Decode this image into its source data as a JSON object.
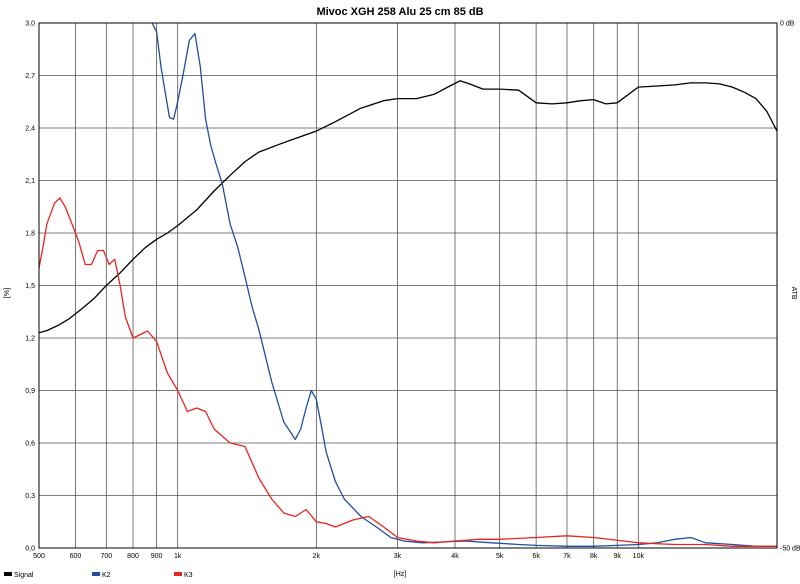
{
  "chart_data": {
    "type": "line",
    "title": "Mivoc XGH 258 Alu 25 cm 85 dB",
    "xlabel": "[Hz]",
    "ylabel": "[%]",
    "y2label": "ATB",
    "x_scale": "log",
    "xlim": [
      500,
      20000
    ],
    "ylim": [
      0,
      3.0
    ],
    "y2lim": [
      -50,
      0
    ],
    "grid": true,
    "legend_position": "bottom-left",
    "x_ticks": [
      {
        "value": 500,
        "label": "500"
      },
      {
        "value": 600,
        "label": "600"
      },
      {
        "value": 700,
        "label": "700"
      },
      {
        "value": 800,
        "label": "800"
      },
      {
        "value": 900,
        "label": "900"
      },
      {
        "value": 1000,
        "label": "1k"
      },
      {
        "value": 2000,
        "label": "2k"
      },
      {
        "value": 3000,
        "label": "3k"
      },
      {
        "value": 4000,
        "label": "4k"
      },
      {
        "value": 5000,
        "label": "5k"
      },
      {
        "value": 6000,
        "label": "6k"
      },
      {
        "value": 7000,
        "label": "7k"
      },
      {
        "value": 8000,
        "label": "8k"
      },
      {
        "value": 9000,
        "label": "9k"
      },
      {
        "value": 10000,
        "label": "10k"
      }
    ],
    "y_ticks": [
      {
        "value": 0,
        "label": "0,0"
      },
      {
        "value": 0.3,
        "label": "0,3"
      },
      {
        "value": 0.6,
        "label": "0,6"
      },
      {
        "value": 0.9,
        "label": "0,9"
      },
      {
        "value": 1.2,
        "label": "1,2"
      },
      {
        "value": 1.5,
        "label": "1,5"
      },
      {
        "value": 1.8,
        "label": "1,8"
      },
      {
        "value": 2.1,
        "label": "2,1"
      },
      {
        "value": 2.4,
        "label": "2,4"
      },
      {
        "value": 2.7,
        "label": "2,7"
      },
      {
        "value": 3.0,
        "label": "3,0"
      }
    ],
    "y2_ticks": [
      {
        "value": 0,
        "label": "0 dB"
      },
      {
        "value": -50,
        "label": "-50 dB"
      }
    ],
    "series": [
      {
        "name": "Signal",
        "color": "#000000",
        "axis": "right_dB",
        "x": [
          500,
          520,
          550,
          580,
          620,
          660,
          700,
          750,
          800,
          850,
          900,
          950,
          1000,
          1100,
          1200,
          1300,
          1400,
          1500,
          1650,
          1800,
          2000,
          2200,
          2500,
          2800,
          3000,
          3300,
          3600,
          3900,
          4100,
          4300,
          4600,
          5000,
          5500,
          6000,
          6500,
          7000,
          7500,
          8000,
          8500,
          9000,
          10000,
          11000,
          12000,
          13000,
          14000,
          15000,
          16000,
          17000,
          18000,
          19000,
          20000
        ],
        "values": [
          -29.5,
          -29.3,
          -28.8,
          -28.2,
          -27.2,
          -26.2,
          -25.0,
          -23.8,
          -22.5,
          -21.4,
          -20.6,
          -20.0,
          -19.3,
          -17.8,
          -16.0,
          -14.5,
          -13.2,
          -12.3,
          -11.6,
          -11.0,
          -10.3,
          -9.4,
          -8.1,
          -7.4,
          -7.2,
          -7.2,
          -6.8,
          -6.0,
          -5.5,
          -5.8,
          -6.3,
          -6.3,
          -6.4,
          -7.6,
          -7.7,
          -7.6,
          -7.4,
          -7.3,
          -7.7,
          -7.6,
          -6.1,
          -6.0,
          -5.9,
          -5.7,
          -5.7,
          -5.8,
          -6.1,
          -6.6,
          -7.2,
          -8.4,
          -10.3
        ]
      },
      {
        "name": "K2",
        "color": "#1f4f9f",
        "axis": "left_percent",
        "x": [
          880,
          900,
          920,
          940,
          960,
          980,
          1000,
          1030,
          1060,
          1090,
          1120,
          1150,
          1180,
          1210,
          1250,
          1300,
          1350,
          1400,
          1450,
          1500,
          1600,
          1700,
          1800,
          1850,
          1900,
          1950,
          2000,
          2050,
          2100,
          2200,
          2300,
          2500,
          2700,
          2900,
          3100,
          3400,
          3800,
          4200,
          4800,
          5500,
          6000,
          7000,
          8000,
          9000,
          10000,
          11000,
          12000,
          13000,
          14000,
          16000,
          18000,
          20000
        ],
        "values": [
          3.0,
          2.95,
          2.75,
          2.6,
          2.46,
          2.45,
          2.55,
          2.72,
          2.9,
          2.94,
          2.75,
          2.45,
          2.3,
          2.2,
          2.08,
          1.85,
          1.72,
          1.55,
          1.38,
          1.25,
          0.95,
          0.72,
          0.62,
          0.68,
          0.8,
          0.9,
          0.85,
          0.7,
          0.55,
          0.38,
          0.28,
          0.18,
          0.12,
          0.06,
          0.04,
          0.03,
          0.035,
          0.04,
          0.03,
          0.02,
          0.015,
          0.01,
          0.01,
          0.015,
          0.02,
          0.03,
          0.05,
          0.06,
          0.03,
          0.02,
          0.01,
          0.01
        ]
      },
      {
        "name": "K3",
        "color": "#e8241f",
        "axis": "left_percent",
        "x": [
          500,
          510,
          520,
          540,
          555,
          570,
          590,
          610,
          630,
          650,
          670,
          690,
          710,
          730,
          750,
          770,
          800,
          830,
          860,
          900,
          950,
          1000,
          1050,
          1100,
          1150,
          1200,
          1300,
          1400,
          1500,
          1600,
          1700,
          1800,
          1900,
          2000,
          2100,
          2200,
          2400,
          2600,
          2800,
          3000,
          3300,
          3600,
          4000,
          4500,
          5000,
          6000,
          7000,
          8000,
          10000,
          12000,
          14000,
          16000,
          18000,
          20000
        ],
        "values": [
          1.6,
          1.72,
          1.85,
          1.97,
          2.0,
          1.95,
          1.85,
          1.75,
          1.62,
          1.62,
          1.7,
          1.7,
          1.62,
          1.65,
          1.5,
          1.32,
          1.2,
          1.22,
          1.24,
          1.18,
          1.0,
          0.9,
          0.78,
          0.8,
          0.78,
          0.68,
          0.6,
          0.58,
          0.4,
          0.28,
          0.2,
          0.18,
          0.22,
          0.15,
          0.14,
          0.12,
          0.16,
          0.18,
          0.12,
          0.06,
          0.04,
          0.03,
          0.04,
          0.05,
          0.05,
          0.06,
          0.07,
          0.06,
          0.03,
          0.02,
          0.02,
          0.01,
          0.01,
          0.01
        ]
      }
    ]
  }
}
